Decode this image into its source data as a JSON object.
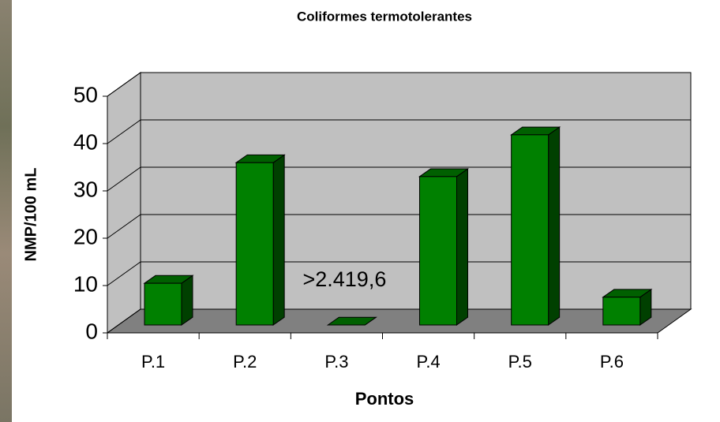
{
  "chart_data": {
    "type": "bar3d",
    "title": "Coliformes termotolerantes",
    "x_label": "Pontos",
    "y_label": "NMP/100 mL",
    "categories": [
      "P.1",
      "P.2",
      "P.3",
      "P.4",
      "P.5",
      "P.6"
    ],
    "values": [
      9,
      35,
      0,
      32,
      41,
      6
    ],
    "annotations": [
      {
        "text": ">2.419,6",
        "category": 2
      }
    ],
    "color": "#008000",
    "ylim": [
      0,
      50
    ],
    "yticks": [
      0,
      10,
      20,
      30,
      40,
      50
    ],
    "grid": true
  }
}
